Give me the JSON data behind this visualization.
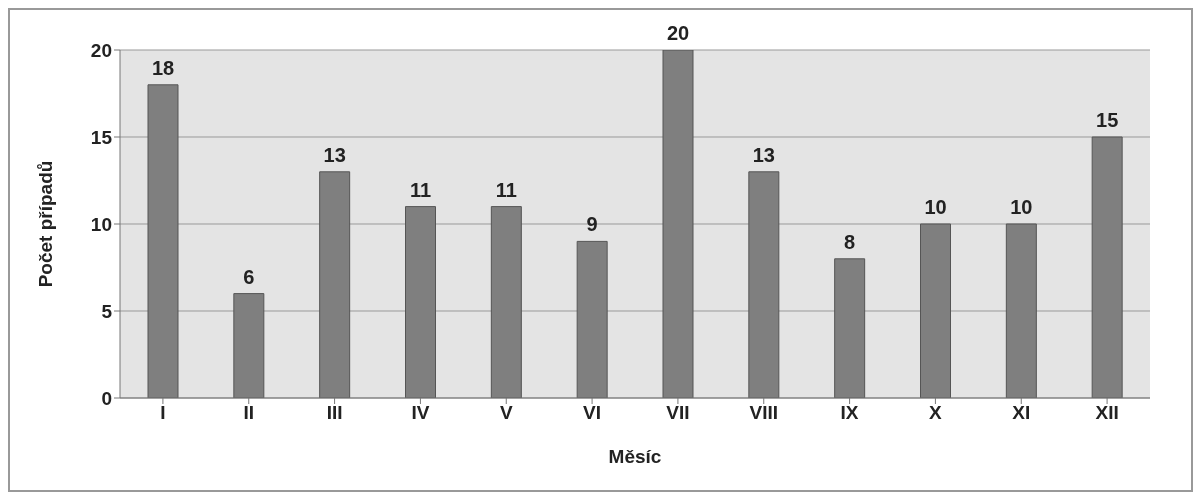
{
  "chart_data": {
    "type": "bar",
    "xlabel": "Měsíc",
    "ylabel": "Počet případů",
    "categories": [
      "I",
      "II",
      "III",
      "IV",
      "V",
      "VI",
      "VII",
      "VIII",
      "IX",
      "X",
      "XI",
      "XII"
    ],
    "values": [
      18,
      6,
      13,
      11,
      11,
      9,
      20,
      13,
      8,
      10,
      10,
      15
    ],
    "color": "#7f7f7f",
    "ylim": [
      0,
      20
    ],
    "yticks": [
      0,
      5,
      10,
      15,
      20
    ],
    "grid": "y",
    "data_labels": true
  }
}
